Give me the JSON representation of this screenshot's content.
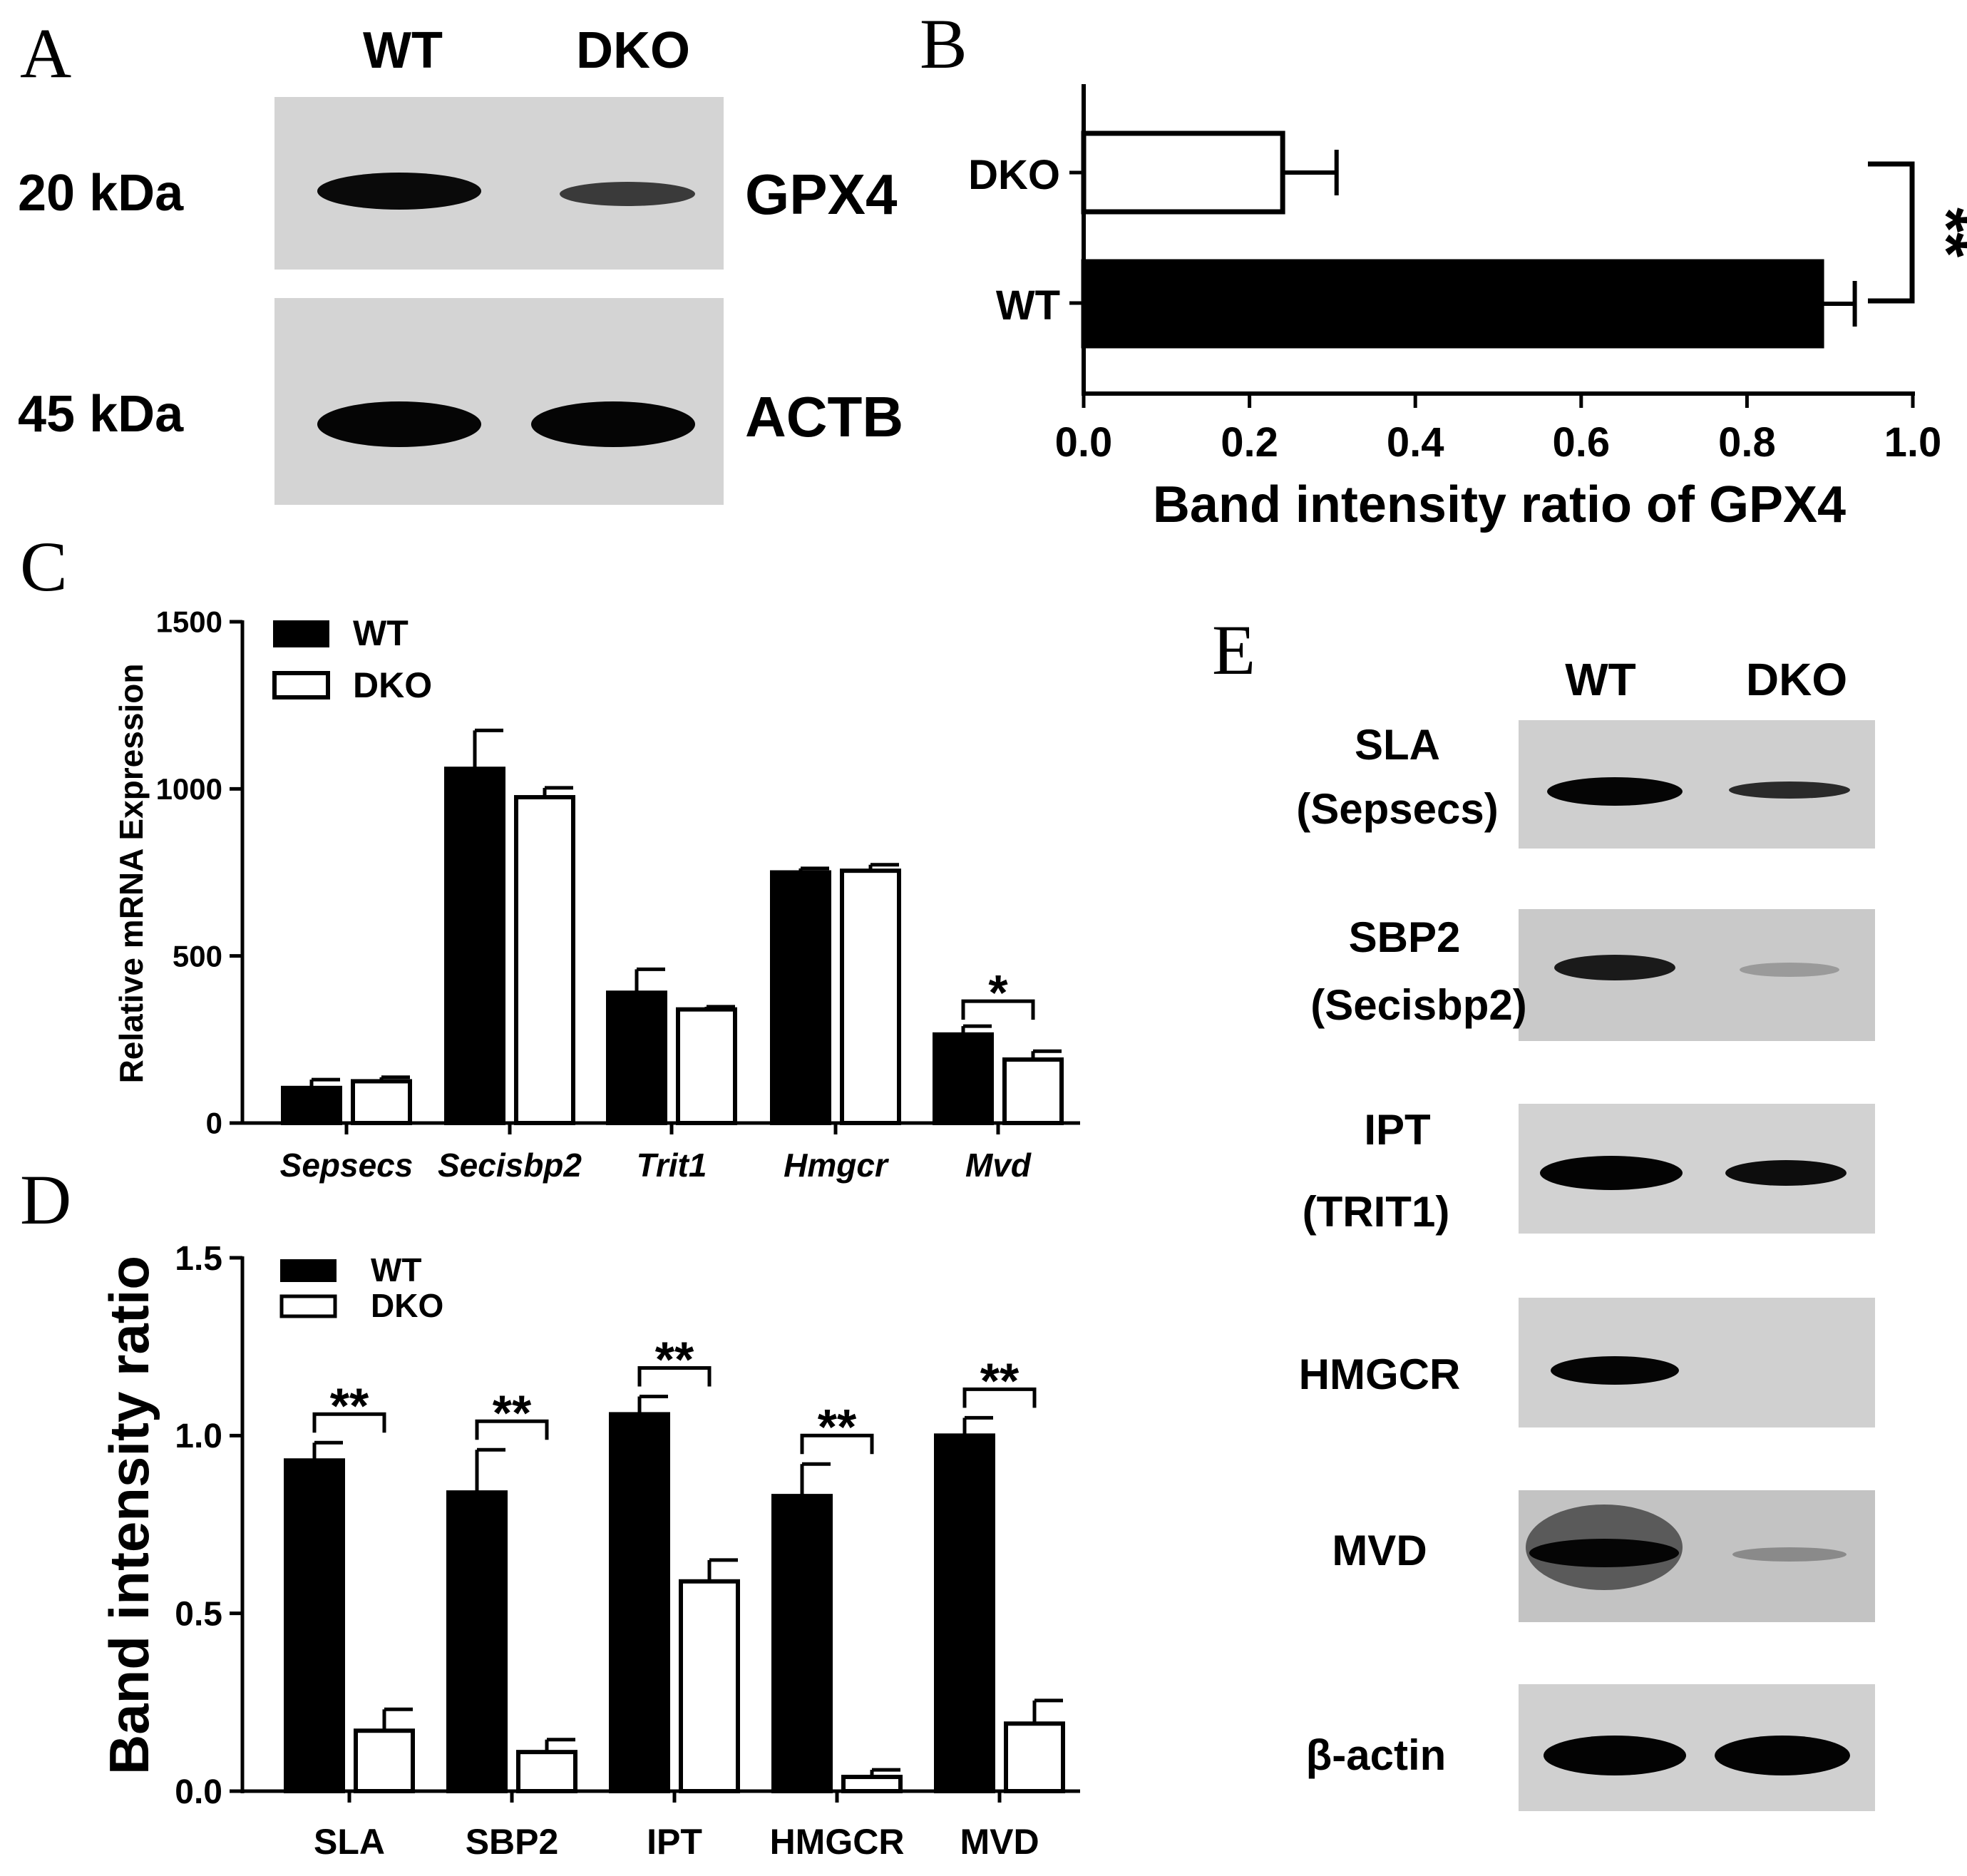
{
  "panels": {
    "A": "A",
    "B": "B",
    "C": "C",
    "D": "D",
    "E": "E"
  },
  "colors": {
    "wt_bar": "#000000",
    "dko_bar": "#ffffff",
    "stroke": "#000000"
  },
  "blot_a": {
    "col_headers": [
      "WT",
      "DKO"
    ],
    "rows": [
      {
        "mw": "20 kDa",
        "protein": "GPX4",
        "band_intensity": [
          0.92,
          0.35
        ]
      },
      {
        "mw": "45 kDa",
        "protein": "ACTB",
        "band_intensity": [
          0.95,
          0.95
        ]
      }
    ]
  },
  "blot_e": {
    "col_headers": [
      "WT",
      "DKO"
    ],
    "rows": [
      {
        "label": [
          "SLA",
          "(Sepsecs)"
        ],
        "band_intensity": [
          0.9,
          0.6
        ]
      },
      {
        "label": [
          "SBP2",
          "(Secisbp2)"
        ],
        "band_intensity": [
          0.75,
          0.2
        ]
      },
      {
        "label": [
          "IPT",
          "(TRIT1)"
        ],
        "band_intensity": [
          0.97,
          0.8
        ]
      },
      {
        "label": [
          "HMGCR"
        ],
        "band_intensity": [
          0.85,
          0.0
        ]
      },
      {
        "label": [
          "MVD"
        ],
        "band_intensity": [
          0.95,
          0.3
        ]
      },
      {
        "label": [
          "β-actin"
        ],
        "band_intensity": [
          0.97,
          0.97
        ]
      }
    ]
  },
  "chart_data": [
    {
      "panel": "B",
      "type": "bar",
      "orientation": "horizontal",
      "categories": [
        "DKO",
        "WT"
      ],
      "values": [
        0.24,
        0.89
      ],
      "errors": [
        0.065,
        0.04
      ],
      "xlabel": "Band intensity ratio of GPX4",
      "xlim": [
        0,
        1.0
      ],
      "xticks": [
        "0.0",
        "0.2",
        "0.4",
        "0.6",
        "0.8",
        "1.0"
      ],
      "significance": "**",
      "legend": "none",
      "grid": false
    },
    {
      "panel": "C",
      "type": "bar",
      "categories": [
        "Sepsecs",
        "Secisbp2",
        "Trit1",
        "Hmgcr",
        "Mvd"
      ],
      "series": [
        {
          "name": "WT",
          "values": [
            105,
            1060,
            390,
            750,
            265
          ],
          "errors": [
            25,
            115,
            70,
            12,
            25
          ]
        },
        {
          "name": "DKO",
          "values": [
            125,
            975,
            340,
            755,
            190
          ],
          "errors": [
            12,
            28,
            8,
            18,
            25
          ]
        }
      ],
      "ylabel": "Relative mRNA Expression",
      "ylim": [
        0,
        1500
      ],
      "yticks": [
        "0",
        "500",
        "1000",
        "1500"
      ],
      "significance": [
        null,
        null,
        null,
        null,
        "*"
      ],
      "legend": "top-left",
      "grid": false
    },
    {
      "panel": "D",
      "type": "bar",
      "categories": [
        "SLA",
        "SBP2",
        "IPT",
        "HMGCR",
        "MVD"
      ],
      "series": [
        {
          "name": "WT",
          "values": [
            0.93,
            0.84,
            1.06,
            0.83,
            1.0
          ],
          "errors": [
            0.05,
            0.12,
            0.05,
            0.09,
            0.05
          ]
        },
        {
          "name": "DKO",
          "values": [
            0.17,
            0.11,
            0.59,
            0.04,
            0.19
          ],
          "errors": [
            0.06,
            0.035,
            0.06,
            0.02,
            0.065
          ]
        }
      ],
      "ylabel": "Band intensity ratio",
      "ylim": [
        0,
        1.5
      ],
      "yticks": [
        "0.0",
        "0.5",
        "1.0",
        "1.5"
      ],
      "significance": [
        "**",
        "**",
        "**",
        "**",
        "**"
      ],
      "legend": "top-left",
      "grid": false
    }
  ]
}
